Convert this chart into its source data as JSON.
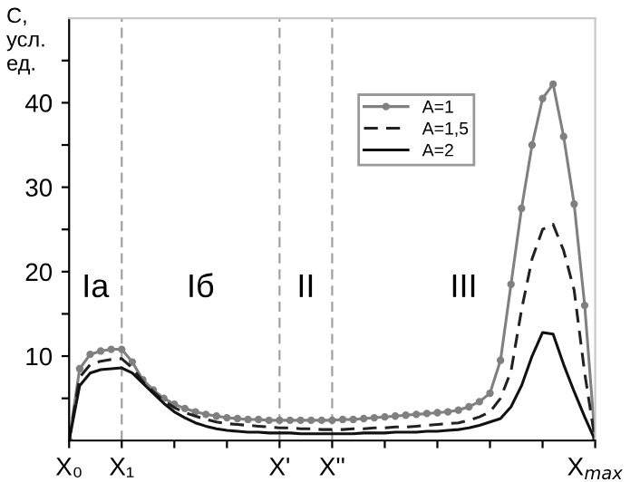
{
  "chart_data": {
    "type": "line",
    "ylabel": "С,\nусл.\nед.",
    "categories": [
      "X₀",
      null,
      null,
      null,
      null,
      "X₁",
      null,
      null,
      null,
      null,
      null,
      null,
      null,
      null,
      null,
      null,
      null,
      null,
      null,
      null,
      "X'",
      null,
      null,
      null,
      null,
      "X''",
      null,
      null,
      null,
      null,
      null,
      null,
      null,
      null,
      null,
      null,
      null,
      null,
      null,
      null,
      null,
      null,
      null,
      null,
      null,
      null,
      null,
      null,
      null,
      null,
      "X$_{max}$"
    ],
    "ylim": [
      0,
      50
    ],
    "yticks": [
      {
        "value": 5,
        "label": null
      },
      10,
      {
        "value": 15,
        "label": null
      },
      20,
      {
        "value": 25,
        "label": null
      },
      30,
      {
        "value": 35,
        "label": null
      },
      40,
      {
        "value": 45,
        "label": null
      }
    ],
    "series": [
      {
        "name": "A=1",
        "color": "#808080",
        "marker": "circle",
        "line_style": "solid",
        "values": [
          0,
          8.5,
          10.2,
          10.6,
          10.8,
          10.8,
          9.3,
          7.2,
          6.0,
          5.0,
          4.3,
          3.8,
          3.4,
          3.1,
          2.9,
          2.7,
          2.6,
          2.5,
          2.5,
          2.4,
          2.4,
          2.4,
          2.4,
          2.4,
          2.4,
          2.4,
          2.5,
          2.5,
          2.6,
          2.7,
          2.8,
          2.9,
          3.0,
          3.1,
          3.2,
          3.3,
          3.4,
          3.6,
          4.0,
          4.6,
          5.6,
          9.5,
          18.5,
          27.5,
          35,
          40.5,
          42.2,
          36,
          28,
          16,
          0
        ]
      },
      {
        "name": "A=1,5",
        "color": "#222222",
        "marker": "none",
        "line_style": "dashed",
        "values": [
          0,
          7.5,
          9.0,
          9.4,
          9.6,
          9.7,
          8.6,
          7.0,
          5.8,
          4.7,
          3.9,
          3.3,
          2.9,
          2.5,
          2.2,
          2.0,
          1.9,
          1.8,
          1.7,
          1.6,
          1.5,
          1.5,
          1.4,
          1.4,
          1.3,
          1.3,
          1.3,
          1.4,
          1.4,
          1.5,
          1.5,
          1.6,
          1.6,
          1.7,
          1.8,
          1.9,
          2.0,
          2.1,
          2.4,
          2.8,
          3.4,
          5.0,
          8.2,
          15.5,
          21.5,
          25,
          25.6,
          22.5,
          17.8,
          8,
          0
        ]
      },
      {
        "name": "A=2",
        "color": "#111111",
        "marker": "none",
        "line_style": "solid",
        "values": [
          0,
          6.5,
          8.0,
          8.4,
          8.5,
          8.6,
          8.0,
          6.8,
          5.6,
          4.4,
          3.4,
          2.7,
          2.1,
          1.7,
          1.4,
          1.2,
          1.1,
          1.0,
          1.0,
          0.9,
          0.9,
          0.9,
          0.8,
          0.8,
          0.8,
          0.8,
          0.8,
          0.8,
          0.9,
          0.9,
          0.9,
          1.0,
          1.0,
          1.0,
          1.1,
          1.1,
          1.2,
          1.3,
          1.5,
          1.8,
          2.2,
          2.6,
          4.0,
          6.5,
          10.0,
          12.8,
          12.6,
          9.0,
          5.8,
          2.8,
          0
        ]
      }
    ],
    "ref_lines": [
      {
        "axis": "x",
        "value": "X₁",
        "color": "#a0a0a0",
        "line_style": "dashed"
      },
      {
        "axis": "x",
        "value": "X'",
        "color": "#a0a0a0",
        "line_style": "dashed"
      },
      {
        "axis": "x",
        "value": "X''",
        "color": "#a0a0a0",
        "line_style": "dashed"
      }
    ],
    "annotations": [
      "Iа",
      "Iб",
      "II",
      "III"
    ],
    "legend": "top",
    "grid": false
  }
}
